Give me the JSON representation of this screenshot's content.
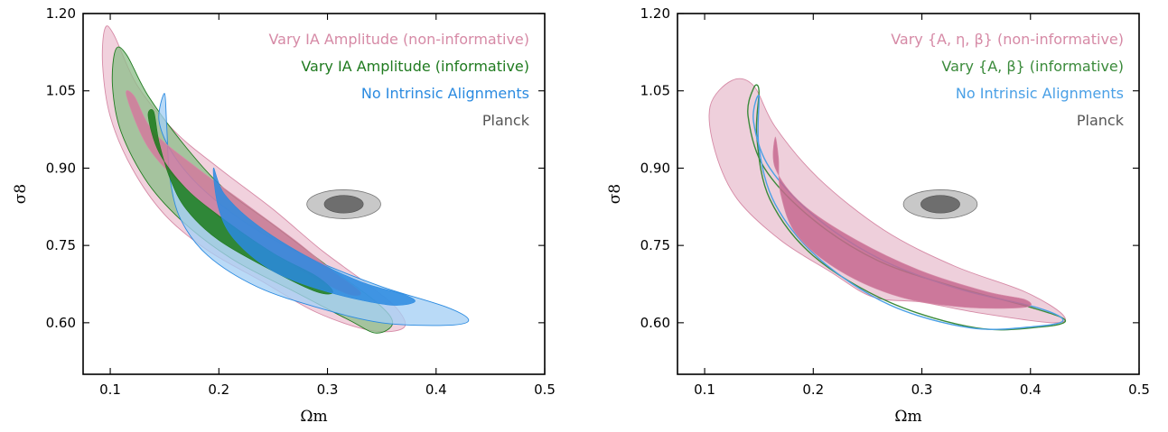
{
  "chart_data": [
    {
      "type": "contour",
      "xlabel": "Ωm",
      "ylabel": "σ8",
      "xlim": [
        0.075,
        0.5
      ],
      "ylim": [
        0.5,
        1.2
      ],
      "xticks": [
        "0.1",
        "0.2",
        "0.3",
        "0.4",
        "0.5"
      ],
      "yticks": [
        "0.60",
        "0.75",
        "0.90",
        "1.05",
        "1.20"
      ],
      "legend_position": "top-right",
      "series": [
        {
          "name": "Vary IA Amplitude (non-informative)",
          "color": "#d68aa6",
          "fill_outer": "#edc4d3",
          "fill_inner": "#d27a9c",
          "contour_68": [
            [
              0.115,
              1.04
            ],
            [
              0.135,
              0.94
            ],
            [
              0.17,
              0.86
            ],
            [
              0.21,
              0.79
            ],
            [
              0.25,
              0.735
            ],
            [
              0.29,
              0.685
            ],
            [
              0.32,
              0.655
            ],
            [
              0.33,
              0.66
            ],
            [
              0.305,
              0.7
            ],
            [
              0.27,
              0.76
            ],
            [
              0.225,
              0.83
            ],
            [
              0.18,
              0.9
            ],
            [
              0.14,
              0.97
            ],
            [
              0.122,
              1.04
            ]
          ],
          "contour_95": [
            [
              0.095,
              1.17
            ],
            [
              0.093,
              1.1
            ],
            [
              0.1,
              1.0
            ],
            [
              0.12,
              0.9
            ],
            [
              0.15,
              0.81
            ],
            [
              0.19,
              0.74
            ],
            [
              0.24,
              0.68
            ],
            [
              0.29,
              0.62
            ],
            [
              0.34,
              0.585
            ],
            [
              0.37,
              0.59
            ],
            [
              0.365,
              0.625
            ],
            [
              0.34,
              0.67
            ],
            [
              0.295,
              0.74
            ],
            [
              0.25,
              0.82
            ],
            [
              0.2,
              0.9
            ],
            [
              0.16,
              0.97
            ],
            [
              0.125,
              1.06
            ],
            [
              0.103,
              1.16
            ]
          ]
        },
        {
          "name": "Vary IA Amplitude (informative)",
          "color": "#1f7a1f",
          "fill_outer": "#8fbf8c",
          "fill_inner": "#1a7a1a",
          "contour_68": [
            [
              0.135,
              1.0
            ],
            [
              0.145,
              0.93
            ],
            [
              0.17,
              0.86
            ],
            [
              0.205,
              0.8
            ],
            [
              0.25,
              0.735
            ],
            [
              0.29,
              0.69
            ],
            [
              0.305,
              0.66
            ],
            [
              0.29,
              0.66
            ],
            [
              0.25,
              0.7
            ],
            [
              0.2,
              0.76
            ],
            [
              0.17,
              0.82
            ],
            [
              0.155,
              0.88
            ],
            [
              0.145,
              0.95
            ],
            [
              0.14,
              1.01
            ]
          ],
          "contour_95": [
            [
              0.105,
              1.13
            ],
            [
              0.102,
              1.06
            ],
            [
              0.11,
              0.97
            ],
            [
              0.135,
              0.87
            ],
            [
              0.17,
              0.79
            ],
            [
              0.215,
              0.72
            ],
            [
              0.27,
              0.66
            ],
            [
              0.32,
              0.605
            ],
            [
              0.345,
              0.58
            ],
            [
              0.36,
              0.6
            ],
            [
              0.345,
              0.64
            ],
            [
              0.3,
              0.71
            ],
            [
              0.25,
              0.79
            ],
            [
              0.205,
              0.86
            ],
            [
              0.17,
              0.94
            ],
            [
              0.135,
              1.04
            ],
            [
              0.115,
              1.12
            ]
          ]
        },
        {
          "name": "No Intrinsic Alignments",
          "color": "#2a8ae0",
          "fill_outer": "#a5d0f5",
          "fill_inner": "#2a8ae0",
          "contour_68": [
            [
              0.195,
              0.9
            ],
            [
              0.205,
              0.85
            ],
            [
              0.235,
              0.79
            ],
            [
              0.28,
              0.73
            ],
            [
              0.33,
              0.68
            ],
            [
              0.37,
              0.655
            ],
            [
              0.38,
              0.64
            ],
            [
              0.355,
              0.635
            ],
            [
              0.3,
              0.66
            ],
            [
              0.25,
              0.7
            ],
            [
              0.215,
              0.76
            ],
            [
              0.2,
              0.82
            ]
          ],
          "contour_95": [
            [
              0.15,
              1.045
            ],
            [
              0.145,
              0.99
            ],
            [
              0.16,
              0.92
            ],
            [
              0.19,
              0.85
            ],
            [
              0.235,
              0.78
            ],
            [
              0.29,
              0.72
            ],
            [
              0.35,
              0.67
            ],
            [
              0.41,
              0.63
            ],
            [
              0.43,
              0.605
            ],
            [
              0.41,
              0.595
            ],
            [
              0.35,
              0.6
            ],
            [
              0.29,
              0.63
            ],
            [
              0.235,
              0.67
            ],
            [
              0.19,
              0.73
            ],
            [
              0.165,
              0.8
            ],
            [
              0.155,
              0.88
            ],
            [
              0.152,
              0.98
            ]
          ]
        },
        {
          "name": "Planck",
          "color": "#555555",
          "fill_outer": "#c8c8c8",
          "fill_inner": "#6e6e6e",
          "center": [
            0.315,
            0.83
          ],
          "radius_68": [
            0.018,
            0.017
          ],
          "radius_95": [
            0.034,
            0.028
          ]
        }
      ]
    },
    {
      "type": "contour",
      "xlabel": "Ωm",
      "ylabel": "σ8",
      "xlim": [
        0.075,
        0.5
      ],
      "ylim": [
        0.5,
        1.2
      ],
      "xticks": [
        "0.1",
        "0.2",
        "0.3",
        "0.4",
        "0.5"
      ],
      "yticks": [
        "0.60",
        "0.75",
        "0.90",
        "1.05",
        "1.20"
      ],
      "legend_position": "top-right",
      "series": [
        {
          "name": "Vary {A, η, β} (non-informative)",
          "color": "#d68aa6",
          "fill_outer": "#e9c2d1",
          "fill_inner": "#c6688f",
          "contour_68": [
            [
              0.165,
              0.96
            ],
            [
              0.165,
              0.9
            ],
            [
              0.19,
              0.83
            ],
            [
              0.24,
              0.76
            ],
            [
              0.3,
              0.7
            ],
            [
              0.36,
              0.66
            ],
            [
              0.395,
              0.645
            ],
            [
              0.395,
              0.63
            ],
            [
              0.34,
              0.63
            ],
            [
              0.28,
              0.65
            ],
            [
              0.225,
              0.7
            ],
            [
              0.185,
              0.77
            ],
            [
              0.17,
              0.85
            ],
            [
              0.168,
              0.92
            ]
          ],
          "contour_95": [
            [
              0.125,
              1.07
            ],
            [
              0.105,
              1.02
            ],
            [
              0.11,
              0.93
            ],
            [
              0.13,
              0.84
            ],
            [
              0.17,
              0.76
            ],
            [
              0.215,
              0.7
            ],
            [
              0.255,
              0.65
            ],
            [
              0.3,
              0.64
            ],
            [
              0.35,
              0.62
            ],
            [
              0.42,
              0.6
            ],
            [
              0.43,
              0.615
            ],
            [
              0.395,
              0.66
            ],
            [
              0.33,
              0.71
            ],
            [
              0.265,
              0.78
            ],
            [
              0.205,
              0.88
            ],
            [
              0.165,
              0.98
            ],
            [
              0.145,
              1.06
            ]
          ]
        },
        {
          "name": "Vary {A, β} (informative)",
          "color": "#3a8a3a",
          "fill_outer": "none",
          "fill_inner": "none",
          "contour_95": [
            [
              0.145,
              1.055
            ],
            [
              0.14,
              1.0
            ],
            [
              0.155,
              0.9
            ],
            [
              0.2,
              0.8
            ],
            [
              0.26,
              0.72
            ],
            [
              0.33,
              0.67
            ],
            [
              0.4,
              0.63
            ],
            [
              0.432,
              0.605
            ],
            [
              0.41,
              0.592
            ],
            [
              0.35,
              0.59
            ],
            [
              0.27,
              0.64
            ],
            [
              0.2,
              0.73
            ],
            [
              0.16,
              0.84
            ],
            [
              0.148,
              0.96
            ],
            [
              0.15,
              1.05
            ]
          ]
        },
        {
          "name": "No Intrinsic Alignments",
          "color": "#4aa0e6",
          "fill_outer": "none",
          "fill_inner": "none",
          "contour_95": [
            [
              0.15,
              1.04
            ],
            [
              0.145,
              0.99
            ],
            [
              0.16,
              0.9
            ],
            [
              0.205,
              0.8
            ],
            [
              0.265,
              0.72
            ],
            [
              0.335,
              0.665
            ],
            [
              0.405,
              0.63
            ],
            [
              0.43,
              0.605
            ],
            [
              0.405,
              0.593
            ],
            [
              0.345,
              0.59
            ],
            [
              0.27,
              0.635
            ],
            [
              0.205,
              0.725
            ],
            [
              0.165,
              0.83
            ],
            [
              0.15,
              0.94
            ]
          ]
        },
        {
          "name": "Planck",
          "color": "#555555",
          "fill_outer": "#c8c8c8",
          "fill_inner": "#6e6e6e",
          "center": [
            0.317,
            0.83
          ],
          "radius_68": [
            0.018,
            0.017
          ],
          "radius_95": [
            0.034,
            0.028
          ]
        }
      ]
    }
  ]
}
